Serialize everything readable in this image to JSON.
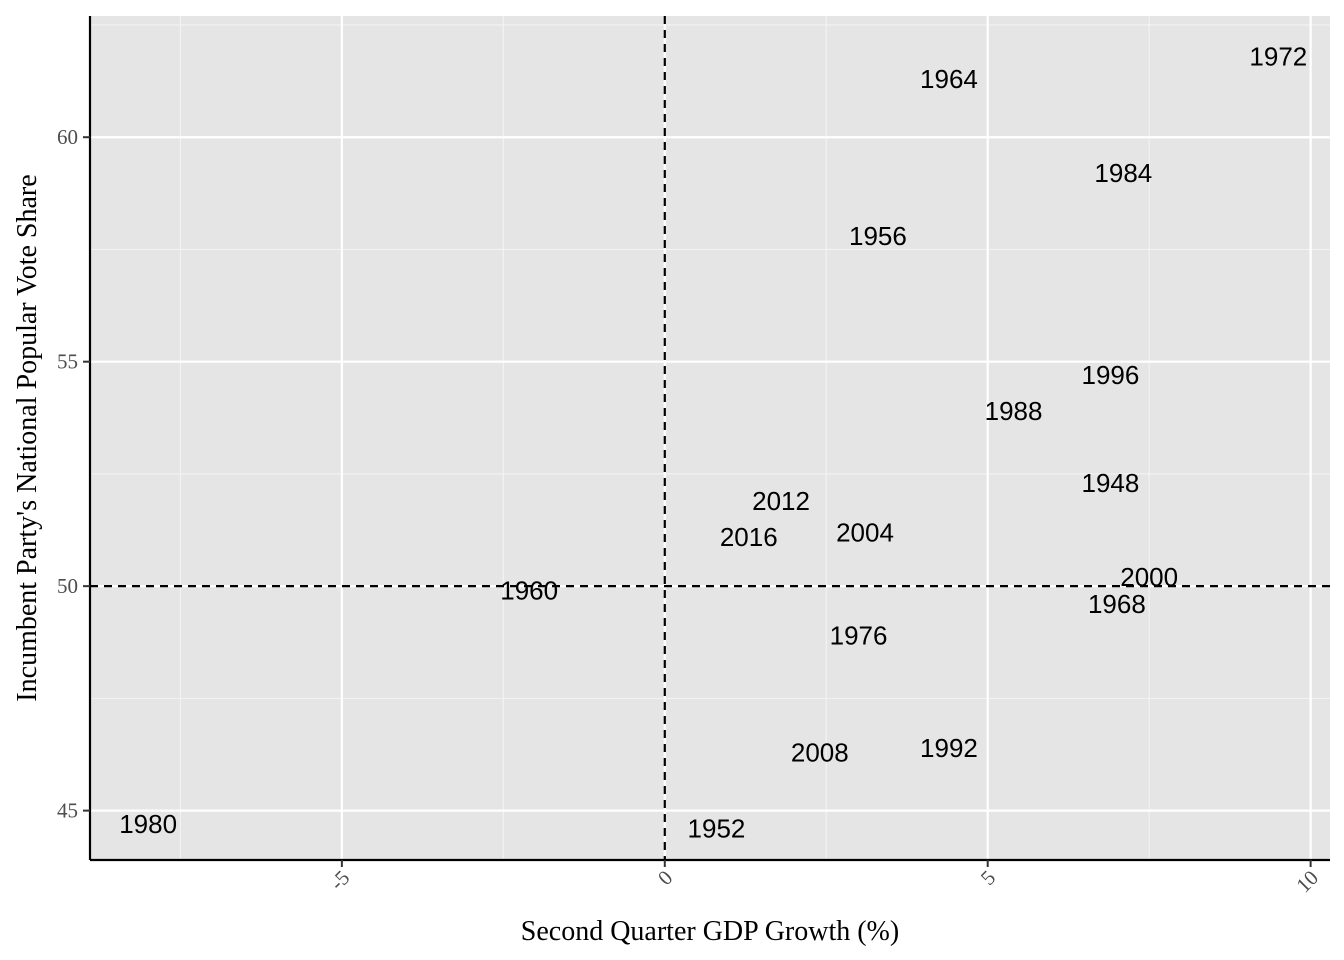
{
  "chart_data": {
    "type": "scatter",
    "title": "",
    "xlabel": "Second Quarter GDP Growth (%)",
    "ylabel": "Incumbent Party's National Popular Vote Share",
    "xlim": [
      -8.9,
      10.3
    ],
    "ylim": [
      43.9,
      62.7
    ],
    "x_ticks": [
      -5,
      0,
      5,
      10
    ],
    "x_tick_labels": [
      "-5",
      "0",
      "5",
      "10"
    ],
    "y_ticks": [
      45,
      50,
      55,
      60
    ],
    "y_tick_labels": [
      "45",
      "50",
      "55",
      "60"
    ],
    "grid": true,
    "reference_lines": {
      "x": 0,
      "y": 50
    },
    "points": [
      {
        "label": "1948",
        "x": 6.9,
        "y": 52.3
      },
      {
        "label": "1952",
        "x": 0.8,
        "y": 44.6
      },
      {
        "label": "1956",
        "x": 3.3,
        "y": 57.8
      },
      {
        "label": "1960",
        "x": -2.1,
        "y": 49.9
      },
      {
        "label": "1964",
        "x": 4.4,
        "y": 61.3
      },
      {
        "label": "1968",
        "x": 7.0,
        "y": 49.6
      },
      {
        "label": "1972",
        "x": 9.5,
        "y": 61.8
      },
      {
        "label": "1976",
        "x": 3.0,
        "y": 48.9
      },
      {
        "label": "1980",
        "x": -8.0,
        "y": 44.7
      },
      {
        "label": "1984",
        "x": 7.1,
        "y": 59.2
      },
      {
        "label": "1988",
        "x": 5.4,
        "y": 53.9
      },
      {
        "label": "1992",
        "x": 4.4,
        "y": 46.4
      },
      {
        "label": "1996",
        "x": 6.9,
        "y": 54.7
      },
      {
        "label": "2000",
        "x": 7.5,
        "y": 50.2
      },
      {
        "label": "2004",
        "x": 3.1,
        "y": 51.2
      },
      {
        "label": "2008",
        "x": 2.4,
        "y": 46.3
      },
      {
        "label": "2012",
        "x": 1.8,
        "y": 51.9
      },
      {
        "label": "2016",
        "x": 1.3,
        "y": 51.1
      }
    ]
  }
}
